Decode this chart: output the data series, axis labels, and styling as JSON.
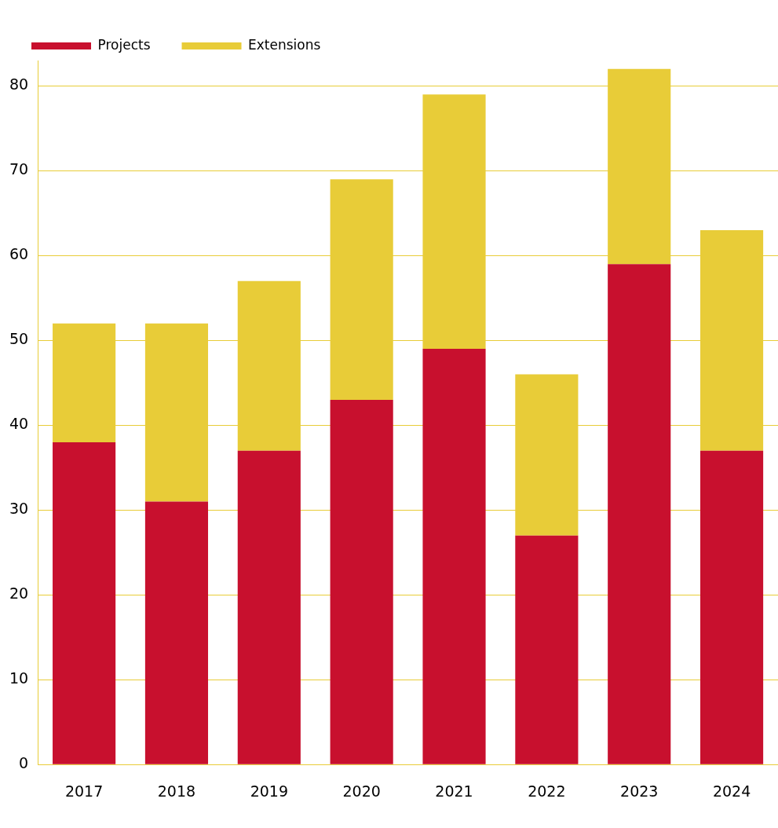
{
  "chart_data": {
    "type": "bar",
    "stacked": true,
    "categories": [
      "2017",
      "2018",
      "2019",
      "2020",
      "2021",
      "2022",
      "2023",
      "2024"
    ],
    "series": [
      {
        "name": "Projects",
        "color": "#c8102e",
        "values": [
          38,
          31,
          37,
          43,
          49,
          27,
          59,
          37
        ]
      },
      {
        "name": "Extensions",
        "color": "#e8cc38",
        "values": [
          14,
          21,
          20,
          26,
          30,
          19,
          23,
          26
        ]
      }
    ],
    "ylim": [
      0,
      83
    ],
    "yticks": [
      0,
      10,
      20,
      30,
      40,
      50,
      60,
      70,
      80
    ],
    "grid": "y",
    "legend": "top left"
  }
}
